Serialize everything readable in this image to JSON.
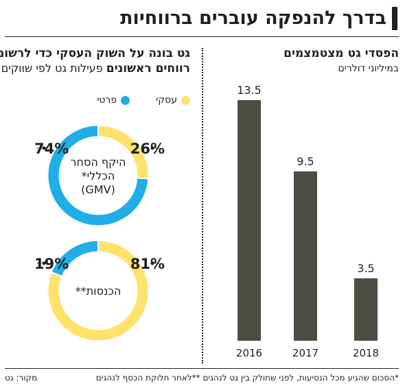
{
  "title": "בדרך להנפקה עוברים ברווחיות",
  "bar_panel": {
    "heading": "הפסדי גט מצטמצמים",
    "subheading": "במיליוני דולרים"
  },
  "donut_panel": {
    "heading": "גט בונה על השוק העסקי כדי לרשום",
    "subheading_bold": "רווחים ראשונים",
    "subheading_rest": "פעילות גט לפי שווקים",
    "legend": [
      {
        "label": "עסקי",
        "color": "#ffe16c"
      },
      {
        "label": "פרטי",
        "color": "#1faee6"
      }
    ]
  },
  "chart_data": [
    {
      "type": "bar",
      "title": "הפסדי גט מצטמצמים",
      "subtitle": "במיליוני דולרים",
      "categories": [
        "2016",
        "2017",
        "2018"
      ],
      "values": [
        13.5,
        9.5,
        3.5
      ],
      "value_labels": [
        "13.5",
        "9.5",
        "3.5"
      ],
      "bar_color": "#4d4d43",
      "ylim": [
        0,
        13.5
      ],
      "grid": false
    },
    {
      "type": "pie",
      "title": "גט בונה על השוק העסקי כדי לרשום רווחים ראשונים",
      "subtitle": "פעילות גט לפי שווקים",
      "series_names": [
        "עסקי",
        "פרטי"
      ],
      "series_colors": [
        "#ffe16c",
        "#1faee6"
      ],
      "charts": [
        {
          "name_lines": [
            "היקף הסחר",
            "הכללי*",
            "(GMV)"
          ],
          "values": [
            26,
            74
          ],
          "labels": [
            "26%",
            "74%"
          ]
        },
        {
          "name_lines": [
            "הכנסות**"
          ],
          "values": [
            81,
            19
          ],
          "labels": [
            "81%",
            "19%"
          ]
        }
      ]
    }
  ],
  "footnote": "*הסכום שהגיע מכל הנסיעות, לפני שחולק בין גט לנהגים **לאחר חלוקת הכסף לנהגים",
  "source": "מקור: גט"
}
